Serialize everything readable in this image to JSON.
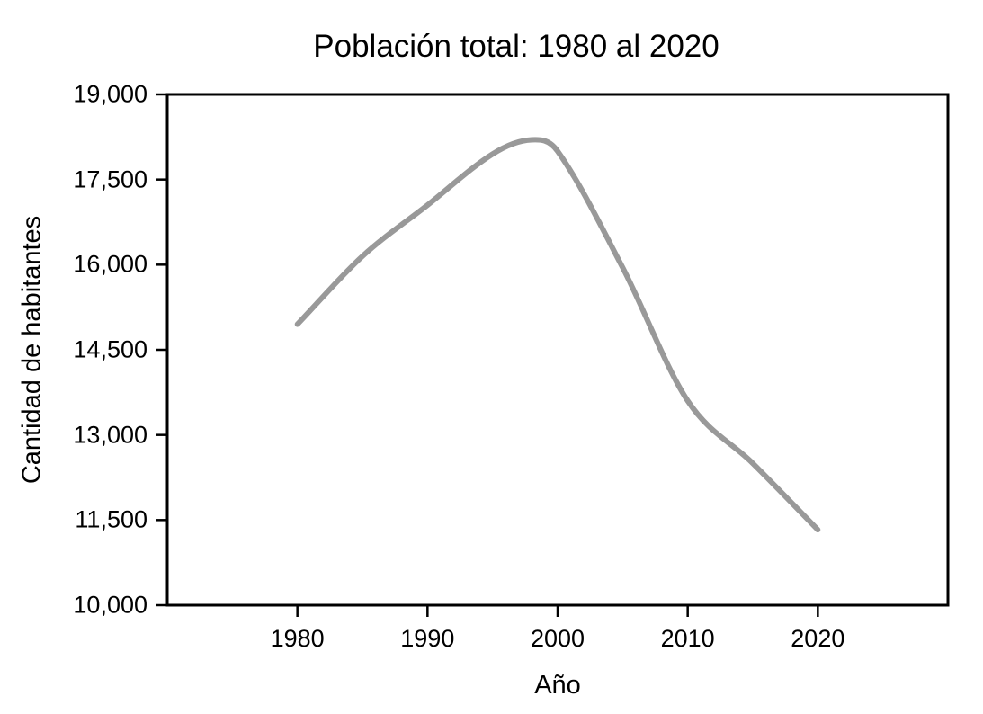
{
  "figure": {
    "background_color": "#ffffff",
    "axis_color": "#000000",
    "text_color": "#000000",
    "line_color": "#999999"
  },
  "chart_data": {
    "type": "line",
    "title": "Población total: 1980 al 2020",
    "xlabel": "Año",
    "ylabel": "Cantidad de habitantes",
    "series": [
      {
        "name": "Población total",
        "x": [
          1980,
          1985,
          1990,
          1995,
          1998,
          2000,
          2005,
          2010,
          2015,
          2020
        ],
        "y": [
          14950,
          16150,
          17050,
          17950,
          18200,
          18000,
          15950,
          13600,
          12500,
          11330
        ],
        "color": "#999999",
        "smooth": true
      }
    ],
    "xlim": [
      1970,
      2030
    ],
    "ylim": [
      10000,
      19000
    ],
    "x_ticks": [
      1980,
      1990,
      2000,
      2010,
      2020
    ],
    "x_tick_labels": [
      "1980",
      "1990",
      "2000",
      "2010",
      "2020"
    ],
    "y_ticks": [
      10000,
      11500,
      13000,
      14500,
      16000,
      17500,
      19000
    ],
    "y_tick_labels": [
      "10,000",
      "11,500",
      "13,000",
      "14,500",
      "16,000",
      "17,500",
      "19,000"
    ],
    "grid": false,
    "legend": "none"
  }
}
